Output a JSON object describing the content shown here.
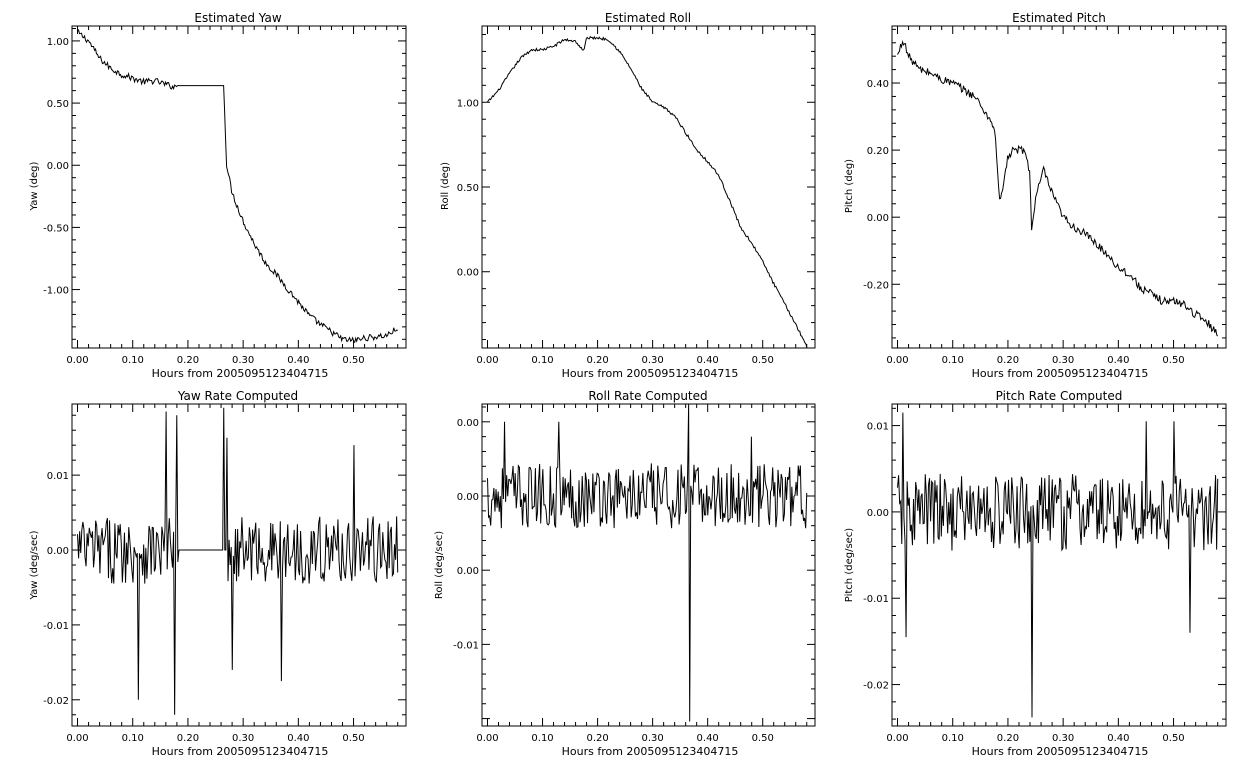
{
  "chart_data": [
    {
      "type": "line",
      "title": "Estimated Yaw",
      "xlabel": "Hours from 2005095123404715",
      "ylabel": "Yaw (deg)",
      "xlim": [
        -0.01,
        0.595
      ],
      "ylim": [
        -1.47,
        1.12
      ],
      "xticks": [
        0.0,
        0.1,
        0.2,
        0.3,
        0.4,
        0.5
      ],
      "xtick_labels": [
        "0.00",
        "0.10",
        "0.20",
        "0.30",
        "0.40",
        "0.50"
      ],
      "yticks": [
        -1.0,
        -0.5,
        0.0,
        0.5,
        1.0
      ],
      "ytick_labels": [
        "-1.00",
        "-0.50",
        "0.00",
        "0.50",
        "1.00"
      ],
      "grid": false,
      "series": [
        {
          "values": [
            [
              0.0,
              1.07
            ],
            [
              0.02,
              1.0
            ],
            [
              0.04,
              0.86
            ],
            [
              0.06,
              0.78
            ],
            [
              0.08,
              0.73
            ],
            [
              0.1,
              0.7
            ],
            [
              0.12,
              0.67
            ],
            [
              0.14,
              0.68
            ],
            [
              0.16,
              0.65
            ],
            [
              0.175,
              0.63
            ],
            [
              0.18,
              0.64
            ],
            [
              0.265,
              0.64
            ],
            [
              0.27,
              0.0
            ],
            [
              0.28,
              -0.22
            ],
            [
              0.3,
              -0.45
            ],
            [
              0.32,
              -0.63
            ],
            [
              0.34,
              -0.78
            ],
            [
              0.36,
              -0.88
            ],
            [
              0.38,
              -0.99
            ],
            [
              0.4,
              -1.1
            ],
            [
              0.42,
              -1.21
            ],
            [
              0.44,
              -1.28
            ],
            [
              0.46,
              -1.34
            ],
            [
              0.48,
              -1.4
            ],
            [
              0.5,
              -1.41
            ],
            [
              0.52,
              -1.39
            ],
            [
              0.54,
              -1.38
            ],
            [
              0.56,
              -1.37
            ],
            [
              0.58,
              -1.31
            ]
          ],
          "noise": 0.025
        }
      ]
    },
    {
      "type": "line",
      "title": "Estimated Roll",
      "xlabel": "Hours from 2005095123404715",
      "ylabel": "Roll (deg)",
      "xlim": [
        -0.01,
        0.595
      ],
      "ylim": [
        -0.45,
        1.45
      ],
      "xticks": [
        0.0,
        0.1,
        0.2,
        0.3,
        0.4,
        0.5
      ],
      "xtick_labels": [
        "0.00",
        "0.10",
        "0.20",
        "0.30",
        "0.40",
        "0.50"
      ],
      "yticks": [
        0.0,
        0.5,
        1.0
      ],
      "ytick_labels": [
        "0.00",
        "0.50",
        "1.00"
      ],
      "grid": false,
      "series": [
        {
          "values": [
            [
              0.0,
              1.0
            ],
            [
              0.02,
              1.07
            ],
            [
              0.04,
              1.17
            ],
            [
              0.06,
              1.26
            ],
            [
              0.08,
              1.31
            ],
            [
              0.1,
              1.31
            ],
            [
              0.12,
              1.33
            ],
            [
              0.14,
              1.37
            ],
            [
              0.16,
              1.36
            ],
            [
              0.175,
              1.3
            ],
            [
              0.18,
              1.38
            ],
            [
              0.2,
              1.38
            ],
            [
              0.22,
              1.37
            ],
            [
              0.24,
              1.3
            ],
            [
              0.26,
              1.2
            ],
            [
              0.28,
              1.08
            ],
            [
              0.3,
              1.0
            ],
            [
              0.32,
              0.97
            ],
            [
              0.34,
              0.92
            ],
            [
              0.36,
              0.82
            ],
            [
              0.38,
              0.72
            ],
            [
              0.4,
              0.65
            ],
            [
              0.42,
              0.57
            ],
            [
              0.44,
              0.42
            ],
            [
              0.46,
              0.26
            ],
            [
              0.48,
              0.17
            ],
            [
              0.5,
              0.06
            ],
            [
              0.52,
              -0.07
            ],
            [
              0.54,
              -0.19
            ],
            [
              0.56,
              -0.31
            ],
            [
              0.58,
              -0.44
            ]
          ],
          "noise": 0.008
        }
      ]
    },
    {
      "type": "line",
      "title": "Estimated Pitch",
      "xlabel": "Hours from 2005095123404715",
      "ylabel": "Pitch (deg)",
      "xlim": [
        -0.01,
        0.595
      ],
      "ylim": [
        -0.39,
        0.57
      ],
      "xticks": [
        0.0,
        0.1,
        0.2,
        0.3,
        0.4,
        0.5
      ],
      "xtick_labels": [
        "0.00",
        "0.10",
        "0.20",
        "0.30",
        "0.40",
        "0.50"
      ],
      "yticks": [
        -0.2,
        0.0,
        0.2,
        0.4
      ],
      "ytick_labels": [
        "-0.20",
        "0.00",
        "0.20",
        "0.40"
      ],
      "grid": false,
      "series": [
        {
          "values": [
            [
              0.0,
              0.48
            ],
            [
              0.01,
              0.53
            ],
            [
              0.02,
              0.48
            ],
            [
              0.04,
              0.44
            ],
            [
              0.06,
              0.43
            ],
            [
              0.08,
              0.41
            ],
            [
              0.1,
              0.4
            ],
            [
              0.12,
              0.38
            ],
            [
              0.14,
              0.36
            ],
            [
              0.16,
              0.31
            ],
            [
              0.175,
              0.27
            ],
            [
              0.18,
              0.18
            ],
            [
              0.185,
              0.04
            ],
            [
              0.19,
              0.08
            ],
            [
              0.2,
              0.18
            ],
            [
              0.21,
              0.2
            ],
            [
              0.23,
              0.2
            ],
            [
              0.24,
              0.13
            ],
            [
              0.243,
              -0.04
            ],
            [
              0.25,
              0.05
            ],
            [
              0.26,
              0.12
            ],
            [
              0.265,
              0.14
            ],
            [
              0.28,
              0.07
            ],
            [
              0.3,
              0.0
            ],
            [
              0.32,
              -0.03
            ],
            [
              0.34,
              -0.05
            ],
            [
              0.36,
              -0.08
            ],
            [
              0.38,
              -0.11
            ],
            [
              0.4,
              -0.15
            ],
            [
              0.42,
              -0.17
            ],
            [
              0.44,
              -0.21
            ],
            [
              0.46,
              -0.23
            ],
            [
              0.48,
              -0.25
            ],
            [
              0.5,
              -0.25
            ],
            [
              0.52,
              -0.26
            ],
            [
              0.54,
              -0.29
            ],
            [
              0.56,
              -0.31
            ],
            [
              0.58,
              -0.35
            ]
          ],
          "noise": 0.012
        }
      ]
    },
    {
      "type": "line",
      "title": "Yaw Rate Computed",
      "xlabel": "Hours from 2005095123404715",
      "ylabel": "Yaw (deg/sec)",
      "xlim": [
        -0.01,
        0.595
      ],
      "ylim": [
        -0.0235,
        0.0195
      ],
      "xticks": [
        0.0,
        0.1,
        0.2,
        0.3,
        0.4,
        0.5
      ],
      "xtick_labels": [
        "0.00",
        "0.10",
        "0.20",
        "0.30",
        "0.40",
        "0.50"
      ],
      "yticks": [
        -0.02,
        -0.01,
        0.0,
        0.01
      ],
      "ytick_labels": [
        "-0.02",
        "-0.01",
        "0.00",
        "0.01"
      ],
      "grid": false,
      "series": [
        {
          "x_range": [
            0.0,
            0.58
          ],
          "n_points": 300,
          "noise_amplitude": 0.0045,
          "flat": [
            [
              0.182,
              0.27,
              0.0
            ]
          ],
          "spikes": [
            [
              0.11,
              -0.02
            ],
            [
              0.16,
              0.0185
            ],
            [
              0.175,
              -0.022
            ],
            [
              0.18,
              0.018
            ],
            [
              0.265,
              0.019
            ],
            [
              0.27,
              0.015
            ],
            [
              0.28,
              -0.016
            ],
            [
              0.37,
              -0.0175
            ],
            [
              0.5,
              0.014
            ]
          ]
        }
      ]
    },
    {
      "type": "line",
      "title": "Roll Rate Computed",
      "xlabel": "Hours from 2005095123404715",
      "ylabel": "Roll (deg/sec)",
      "xlim": [
        -0.01,
        0.595
      ],
      "ylim": [
        -0.0155,
        0.0062
      ],
      "xticks": [
        0.0,
        0.1,
        0.2,
        0.3,
        0.4,
        0.5
      ],
      "xtick_labels": [
        "0.00",
        "0.10",
        "0.20",
        "0.30",
        "0.40",
        "0.50"
      ],
      "yticks": [
        -0.01,
        -0.005,
        0.0,
        0.005
      ],
      "ytick_labels": [
        "-0.01",
        "0.00",
        "0.00",
        "0.00"
      ],
      "grid": false,
      "series": [
        {
          "x_range": [
            0.0,
            0.58
          ],
          "n_points": 300,
          "noise_amplitude": 0.0022,
          "spikes": [
            [
              0.365,
              0.0062
            ],
            [
              0.367,
              -0.0152
            ],
            [
              0.13,
              0.005
            ],
            [
              0.03,
              0.005
            ],
            [
              0.48,
              0.004
            ]
          ]
        }
      ]
    },
    {
      "type": "line",
      "title": "Pitch Rate Computed",
      "xlabel": "Hours from 2005095123404715",
      "ylabel": "Pitch (deg/sec)",
      "xlim": [
        -0.01,
        0.595
      ],
      "ylim": [
        -0.0248,
        0.0125
      ],
      "xticks": [
        0.0,
        0.1,
        0.2,
        0.3,
        0.4,
        0.5
      ],
      "xtick_labels": [
        "0.00",
        "0.10",
        "0.20",
        "0.30",
        "0.40",
        "0.50"
      ],
      "yticks": [
        -0.02,
        -0.01,
        0.0,
        0.01
      ],
      "ytick_labels": [
        "-0.02",
        "-0.01",
        "0.00",
        "0.01"
      ],
      "grid": false,
      "series": [
        {
          "x_range": [
            0.0,
            0.58
          ],
          "n_points": 300,
          "noise_amplitude": 0.0045,
          "spikes": [
            [
              0.243,
              -0.0238
            ],
            [
              0.01,
              0.0115
            ],
            [
              0.015,
              -0.0145
            ],
            [
              0.45,
              0.0105
            ],
            [
              0.5,
              0.0105
            ],
            [
              0.53,
              -0.014
            ]
          ]
        }
      ]
    }
  ]
}
